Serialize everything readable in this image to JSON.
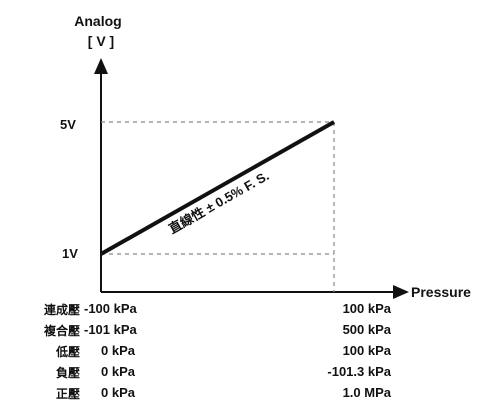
{
  "chart_data": {
    "type": "line",
    "ylabel_line1": "Analog",
    "ylabel_line2": "[ V ]",
    "xlabel": "Pressure",
    "y_ticks": [
      "5V",
      "1V"
    ],
    "y_values": [
      1,
      5
    ],
    "ylim": [
      0,
      6
    ],
    "annotation": "直線性 ± 0.5% F. S.",
    "series": [
      {
        "x": [
          0,
          1
        ],
        "y": [
          1,
          5
        ]
      }
    ],
    "x_range_table": [
      {
        "label": "連成壓",
        "min": "-100 kPa",
        "max": "100 kPa"
      },
      {
        "label": "複合壓",
        "min": "-101 kPa",
        "max": "500 kPa"
      },
      {
        "label": "低壓",
        "min": "0 kPa",
        "max": "100 kPa"
      },
      {
        "label": "負壓",
        "min": "0 kPa",
        "max": "-101.3 kPa"
      },
      {
        "label": "正壓",
        "min": "0 kPa",
        "max": "1.0 MPa"
      }
    ],
    "grid": false,
    "legend": "none"
  }
}
